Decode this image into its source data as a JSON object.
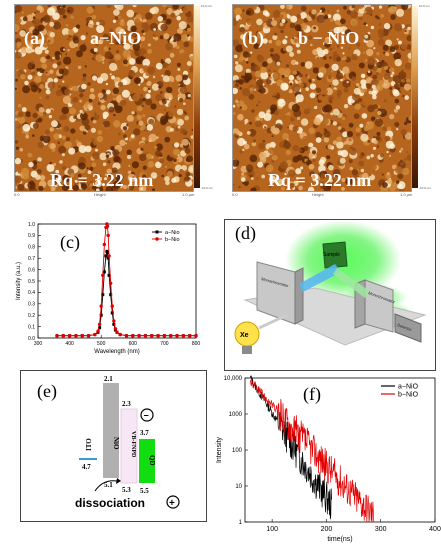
{
  "afm_panels": [
    {
      "id": "a",
      "tag": "(a)",
      "name": "a−NiO",
      "rq": "Rq = 3.22 nm",
      "axis_label": "Height",
      "x_start": "0.0",
      "x_end": "1.0 µm",
      "scale_top": "10.0 nm",
      "scale_bottom": "-10.0 nm"
    },
    {
      "id": "b",
      "tag": "(b)",
      "name": "b − NiO",
      "rq": "Rq = 3.22 nm",
      "axis_label": "Height",
      "x_start": "0.0",
      "x_end": "1.0 µm",
      "scale_top": "10.0 nm",
      "scale_bottom": "-10.0 nm"
    }
  ],
  "panel_c": {
    "tag": "(c)"
  },
  "panel_d": {
    "tag": "(d)",
    "xe": "Xe",
    "sample": "Sample",
    "mono_left": "Monochromator",
    "mono_right": "Monochromator",
    "detector": "Detector"
  },
  "panel_e": {
    "tag": "(e)",
    "ito": "ITO",
    "nio": "NiO",
    "vb": "VB-FNPD",
    "qd": "QD",
    "dissociation": "dissociation",
    "minus": "−",
    "plus": "+",
    "levels": {
      "ito": "4.7",
      "nio_top": "2.1",
      "nio_bottom": "5.1",
      "vb_top": "2.3",
      "vb_bottom": "5.3",
      "qd_top": "3.7",
      "qd_bottom": "5.5"
    }
  },
  "panel_f": {
    "tag": "(f)"
  },
  "colors": {
    "afm_dark": "#5a2606",
    "afm_mid": "#b5651d",
    "afm_light": "#f5deb3",
    "series_a": "#000000",
    "series_b": "#e00000",
    "nio": "#b0b0b0",
    "vb": "#f7e6f3",
    "qd": "#11dd11",
    "ito": "#3a9ad9",
    "green_glow": "#22ee22"
  },
  "chart_data": [
    {
      "type": "line",
      "title": "",
      "xlabel": "Wavelength (nm)",
      "ylabel": "Intensity (a.u.)",
      "xlim": [
        300,
        800
      ],
      "ylim": [
        0,
        1.0
      ],
      "xticks": [
        "300",
        "400",
        "500",
        "600",
        "700",
        "800"
      ],
      "yticks": [
        "0.0",
        "0.1",
        "0.2",
        "0.3",
        "0.4",
        "0.5",
        "0.6",
        "0.7",
        "0.8",
        "0.9",
        "1.0"
      ],
      "legend_position": "top-right",
      "series": [
        {
          "name": "a−Nio",
          "color": "#000000",
          "marker": "square",
          "x": [
            360,
            380,
            400,
            420,
            440,
            460,
            480,
            490,
            495,
            500,
            505,
            510,
            515,
            518,
            520,
            522,
            525,
            530,
            535,
            540,
            545,
            550,
            560,
            580,
            600,
            620,
            640,
            660,
            680,
            700,
            720,
            740,
            760,
            780,
            800
          ],
          "y": [
            0.02,
            0.02,
            0.02,
            0.02,
            0.02,
            0.02,
            0.03,
            0.05,
            0.09,
            0.2,
            0.38,
            0.58,
            0.72,
            0.76,
            0.75,
            0.7,
            0.55,
            0.38,
            0.22,
            0.12,
            0.07,
            0.05,
            0.03,
            0.02,
            0.02,
            0.02,
            0.02,
            0.02,
            0.02,
            0.02,
            0.02,
            0.02,
            0.02,
            0.02,
            0.02
          ]
        },
        {
          "name": "b−Nio",
          "color": "#e00000",
          "marker": "circle",
          "x": [
            360,
            380,
            400,
            420,
            440,
            460,
            480,
            490,
            495,
            500,
            505,
            510,
            515,
            518,
            520,
            522,
            525,
            530,
            535,
            540,
            545,
            550,
            560,
            580,
            600,
            620,
            640,
            660,
            680,
            700,
            720,
            740,
            760,
            780,
            800
          ],
          "y": [
            0.02,
            0.02,
            0.02,
            0.02,
            0.02,
            0.02,
            0.03,
            0.06,
            0.12,
            0.28,
            0.55,
            0.82,
            0.97,
            1.0,
            0.98,
            0.9,
            0.72,
            0.48,
            0.28,
            0.15,
            0.08,
            0.05,
            0.03,
            0.02,
            0.02,
            0.02,
            0.02,
            0.02,
            0.02,
            0.02,
            0.02,
            0.02,
            0.02,
            0.02,
            0.02
          ]
        }
      ]
    },
    {
      "type": "line",
      "title": "",
      "xlabel": "time(ns)",
      "ylabel": "Intensity",
      "xlim": [
        50,
        400
      ],
      "ylim": [
        1,
        10000
      ],
      "yscale": "log",
      "xticks": [
        "100",
        "200",
        "300",
        "400"
      ],
      "yticks": [
        "1",
        "10",
        "100",
        "1000",
        "10,000"
      ],
      "legend_position": "top-right",
      "series": [
        {
          "name": "a−NiO",
          "color": "#000000",
          "tau": 18,
          "amp": 10000,
          "floor_end": 210
        },
        {
          "name": "b−NiO",
          "color": "#e00000",
          "tau": 26,
          "amp": 8000,
          "floor_end": 290
        }
      ]
    }
  ]
}
